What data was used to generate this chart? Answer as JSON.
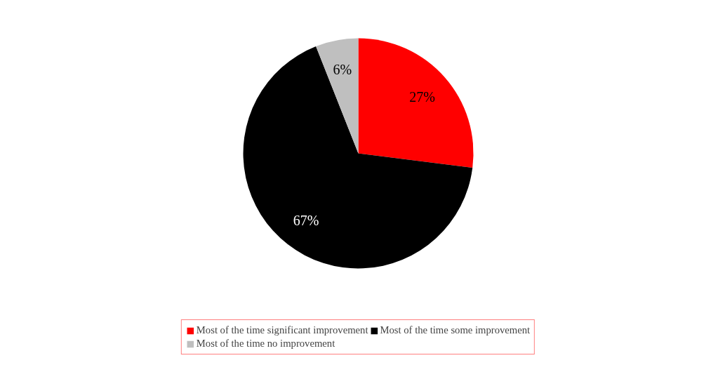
{
  "chart_data": {
    "type": "pie",
    "categories": [
      "Most of the time significant improvement",
      "Most of the time some improvement",
      "Most of the time no improvement"
    ],
    "values": [
      27,
      67,
      6
    ],
    "colors": [
      "#ff0000",
      "#000000",
      "#bfbfbf"
    ],
    "value_labels": [
      "27%",
      "67%",
      "6%"
    ],
    "legend": "bottom"
  }
}
